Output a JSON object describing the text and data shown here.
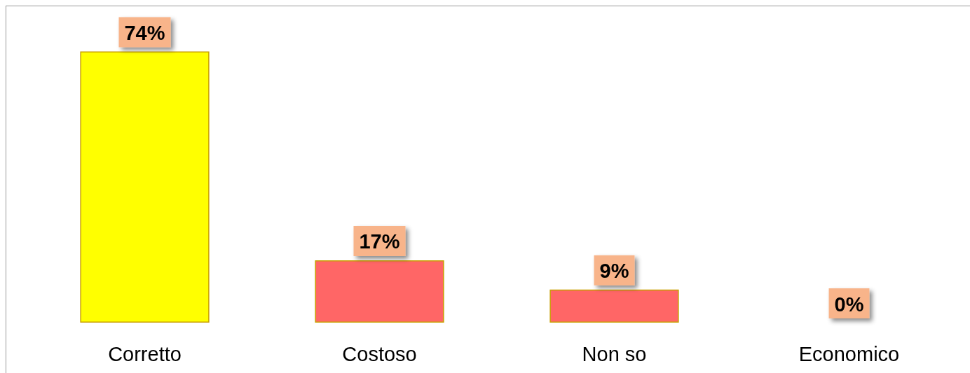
{
  "chart_data": {
    "type": "bar",
    "categories": [
      "Corretto",
      "Costoso",
      "Non so",
      "Economico"
    ],
    "values": [
      74,
      17,
      9,
      0
    ],
    "colors": [
      "#ffff00",
      "#ff6666",
      "#ff6666",
      "#ff6666"
    ],
    "value_labels": [
      "74%",
      "17%",
      "9%",
      "0%"
    ],
    "grid": false
  }
}
